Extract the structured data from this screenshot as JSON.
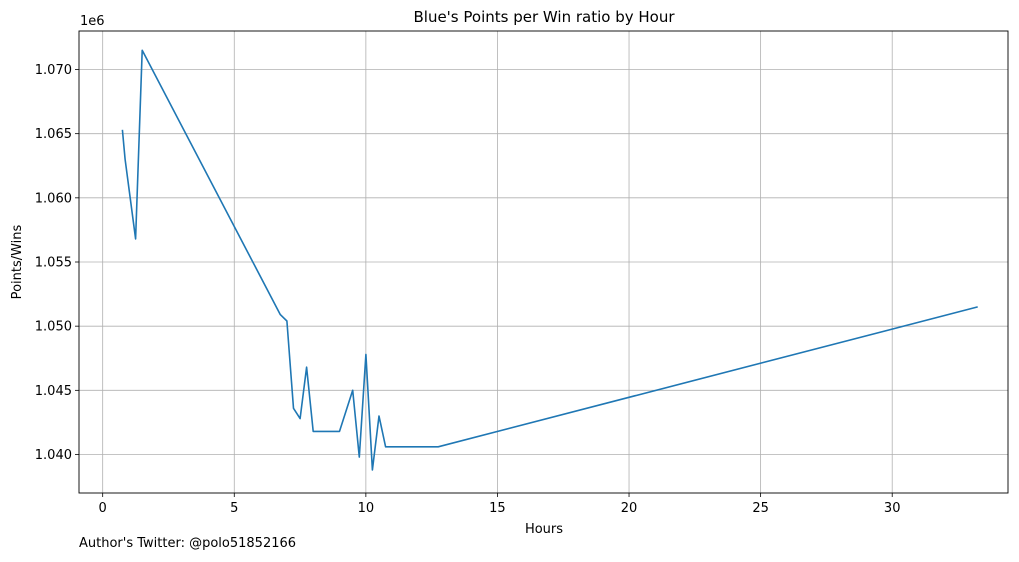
{
  "chart_data": {
    "type": "line",
    "title": "Blue's Points per Win ratio by Hour",
    "xlabel": "Hours",
    "ylabel": "Points/Wins",
    "y_offset_label": "1e6",
    "xlim": [
      -0.9,
      34.4
    ],
    "ylim": [
      1.037,
      1.073
    ],
    "x_ticks": [
      0,
      5,
      10,
      15,
      20,
      25,
      30
    ],
    "y_ticks": [
      1.04,
      1.045,
      1.05,
      1.055,
      1.06,
      1.065,
      1.07
    ],
    "grid": true,
    "color": "#1f77b4",
    "series": [
      {
        "x": [
          0.75,
          0.85,
          1.25,
          1.5,
          6.75,
          7.0,
          7.25,
          7.5,
          7.75,
          8.0,
          9.0,
          9.5,
          9.75,
          10.0,
          10.25,
          10.5,
          10.75,
          12.75,
          33.25
        ],
        "y": [
          1.0653,
          1.063,
          1.0568,
          1.0715,
          1.0509,
          1.0504,
          1.0436,
          1.0428,
          1.0468,
          1.0418,
          1.0418,
          1.045,
          1.0398,
          1.0478,
          1.0388,
          1.043,
          1.0406,
          1.0406,
          1.0515
        ]
      }
    ]
  },
  "footer": {
    "text": "Author's Twitter: @polo51852166"
  }
}
